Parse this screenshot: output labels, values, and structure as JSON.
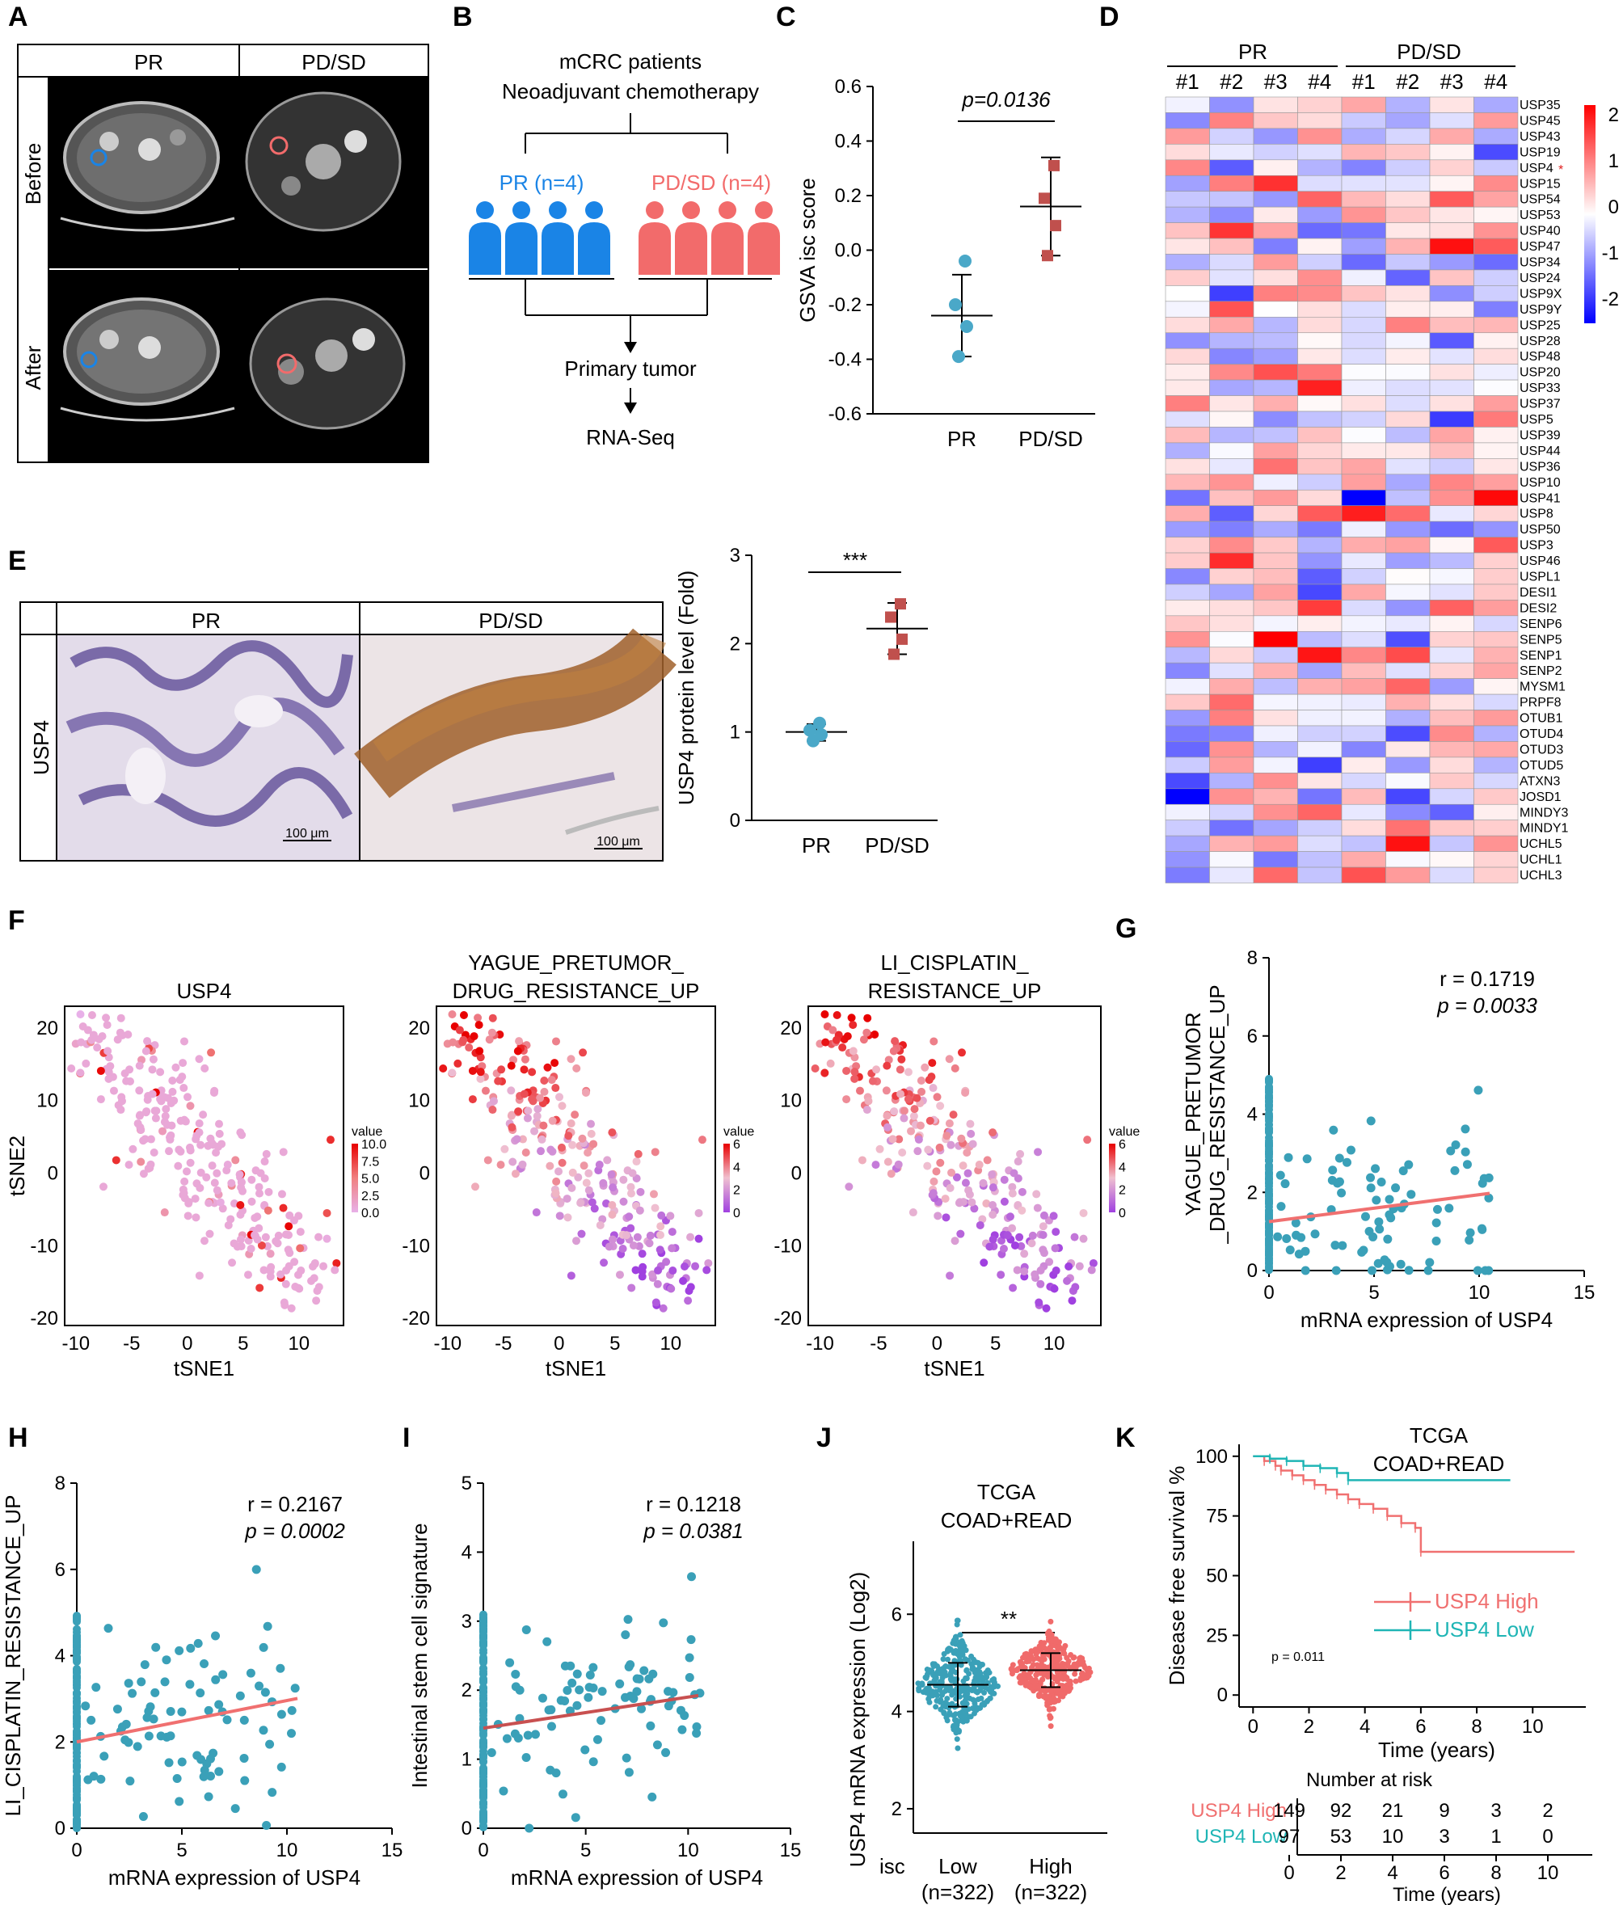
{
  "panel_labels": {
    "A": "A",
    "B": "B",
    "C": "C",
    "D": "D",
    "E": "E",
    "F": "F",
    "G": "G",
    "H": "H",
    "I": "I",
    "J": "J",
    "K": "K"
  },
  "panelA": {
    "col1": "PR",
    "col2": "PD/SD",
    "row1": "Before",
    "row2": "After"
  },
  "panelB": {
    "title1": "mCRC patients",
    "title2": "Neoadjuvant chemotherapy",
    "pr": "PR (n=4)",
    "pdsd": "PD/SD (n=4)",
    "step1": "Primary tumor",
    "step2": "RNA-Seq",
    "pr_color": "#1a84e6",
    "pdsd_color": "#f26b6b"
  },
  "panelE_image": {
    "col1": "PR",
    "col2": "PD/SD",
    "row": "USP4",
    "scale1": "100 μm",
    "scale2": "100 μm"
  },
  "chart_data": [
    {
      "id": "C",
      "type": "scatter",
      "ylabel": "GSVA isc score",
      "categories": [
        "PR",
        "PD/SD"
      ],
      "annotation": "p=0.0136",
      "ylim": [
        -0.6,
        0.6
      ],
      "yticks": [
        "-0.6",
        "-0.4",
        "-0.2",
        "0.0",
        "0.2",
        "0.4",
        "0.6"
      ],
      "groups": [
        {
          "name": "PR",
          "color": "#4aa8c8",
          "points": [
            -0.04,
            -0.2,
            -0.28,
            -0.39
          ],
          "mean": -0.24,
          "sd_low": -0.39,
          "sd_high": -0.09
        },
        {
          "name": "PD/SD",
          "color": "#c0504d",
          "points": [
            0.31,
            0.19,
            0.09,
            -0.02
          ],
          "mean": 0.16,
          "sd_low": -0.02,
          "sd_high": 0.34
        }
      ]
    },
    {
      "id": "D",
      "type": "heatmap",
      "group_labels": [
        "PR",
        "PD/SD"
      ],
      "columns": [
        "#1",
        "#2",
        "#3",
        "#4",
        "#1",
        "#2",
        "#3",
        "#4"
      ],
      "rows": [
        "USP35",
        "USP45",
        "USP43",
        "USP19",
        "USP4",
        "USP15",
        "USP54",
        "USP53",
        "USP40",
        "USP47",
        "USP34",
        "USP24",
        "USP9X",
        "USP9Y",
        "USP25",
        "USP28",
        "USP48",
        "USP20",
        "USP33",
        "USP37",
        "USP5",
        "USP39",
        "USP44",
        "USP36",
        "USP10",
        "USP41",
        "USP8",
        "USP50",
        "USP3",
        "USP46",
        "USPL1",
        "DESI1",
        "DESI2",
        "SENP6",
        "SENP5",
        "SENP1",
        "SENP2",
        "MYSM1",
        "PRPF8",
        "OTUB1",
        "OTUD4",
        "OTUD3",
        "OTUD5",
        "ATXN3",
        "JOSD1",
        "MINDY3",
        "MINDY1",
        "UCHL5",
        "UCHL1",
        "UCHL3"
      ],
      "highlight_row": "USP4",
      "highlight_mark": "*",
      "legend_ticks": [
        "2",
        "1",
        "0",
        "-1",
        "-2"
      ],
      "colors": [
        "#0000ff",
        "#ffffff",
        "#ff0000"
      ]
    },
    {
      "id": "E",
      "type": "scatter",
      "ylabel": "USP4 protein level (Fold)",
      "categories": [
        "PR",
        "PD/SD"
      ],
      "annotation": "***",
      "ylim": [
        0,
        3
      ],
      "yticks": [
        "0",
        "1",
        "2",
        "3"
      ],
      "groups": [
        {
          "name": "PR",
          "color": "#4aa8c8",
          "points": [
            1.1,
            1.02,
            0.97,
            0.9
          ],
          "mean": 1.0,
          "sd_low": 0.9,
          "sd_high": 1.09
        },
        {
          "name": "PD/SD",
          "color": "#c0504d",
          "points": [
            2.45,
            2.3,
            2.05,
            1.88
          ],
          "mean": 2.17,
          "sd_low": 1.88,
          "sd_high": 2.46
        }
      ]
    },
    {
      "id": "F",
      "type": "scatter",
      "subplots": [
        {
          "title": [
            "USP4"
          ],
          "legend_title": "value",
          "legend_ticks": [
            "10.0",
            "7.5",
            "5.0",
            "2.5",
            "0.0"
          ],
          "vmax": 10
        },
        {
          "title": [
            "YAGUE_PRETUMOR_",
            "DRUG_RESISTANCE_UP"
          ],
          "legend_title": "value",
          "legend_ticks": [
            "6",
            "4",
            "2",
            "0"
          ],
          "vmax": 6
        },
        {
          "title": [
            "LI_CISPLATIN_",
            "RESISTANCE_UP"
          ],
          "legend_title": "value",
          "legend_ticks": [
            "6",
            "4",
            "2",
            "0"
          ],
          "vmax": 6
        }
      ],
      "xlabel": "tSNE1",
      "ylabel": "tSNE2",
      "xlim": [
        -11,
        14
      ],
      "ylim": [
        -21,
        23
      ],
      "xticks": [
        "-10",
        "-5",
        "0",
        "5",
        "10"
      ],
      "yticks": [
        "20",
        "10",
        "0",
        "-10",
        "-20"
      ]
    },
    {
      "id": "G",
      "type": "scatter",
      "xlabel": "mRNA expression of USP4",
      "ylabel": [
        "YAGUE_PRETUMOR",
        "_DRUG_RESISTANCE_UP"
      ],
      "stats": [
        "r = 0.1719",
        "p = 0.0033"
      ],
      "xlim": [
        0,
        15
      ],
      "ylim": [
        0,
        8
      ],
      "xticks": [
        "0",
        "5",
        "10",
        "15"
      ],
      "yticks": [
        "0",
        "2",
        "4",
        "6",
        "8"
      ],
      "fit": {
        "intercept": 1.25,
        "slope": 0.069,
        "x_end": 10.5
      },
      "point_color": "#3aa0b8",
      "line_color": "#f07070"
    },
    {
      "id": "H",
      "type": "scatter",
      "xlabel": "mRNA expression of USP4",
      "ylabel": [
        "LI_CISPLATIN_RESISTANCE_UP"
      ],
      "stats": [
        "r = 0.2167",
        "p = 0.0002"
      ],
      "xlim": [
        0,
        15
      ],
      "ylim": [
        0,
        8
      ],
      "xticks": [
        "0",
        "5",
        "10",
        "15"
      ],
      "yticks": [
        "0",
        "2",
        "4",
        "6",
        "8"
      ],
      "fit": {
        "intercept": 2.0,
        "slope": 0.096,
        "x_end": 10.5
      },
      "point_color": "#3aa0b8",
      "line_color": "#f07070"
    },
    {
      "id": "I",
      "type": "scatter",
      "xlabel": "mRNA expression of USP4",
      "ylabel": [
        "Intestinal stem cell signature"
      ],
      "stats": [
        "r = 0.1218",
        "p = 0.0381"
      ],
      "xlim": [
        0,
        15
      ],
      "ylim": [
        0,
        5
      ],
      "xticks": [
        "0",
        "5",
        "10",
        "15"
      ],
      "yticks": [
        "0",
        "1",
        "2",
        "3",
        "4",
        "5"
      ],
      "fit": {
        "intercept": 1.45,
        "slope": 0.045,
        "x_end": 10.5
      },
      "point_color": "#3aa0b8",
      "line_color": "#c85050"
    },
    {
      "id": "J",
      "type": "scatter",
      "title": [
        "TCGA",
        "COAD+READ"
      ],
      "ylabel": "USP4 mRNA expression (Log2)",
      "annotation": "**",
      "row_label": "isc",
      "categories": [
        "Low",
        "High"
      ],
      "category_n": [
        "(n=322)",
        "(n=322)"
      ],
      "ylim": [
        1.5,
        7.5
      ],
      "yticks": [
        "2",
        "4",
        "6"
      ],
      "groups": [
        {
          "name": "Low",
          "color": "#3aa0b8",
          "mean": 4.55,
          "sd": 0.45,
          "min": 2.6,
          "max": 5.9
        },
        {
          "name": "High",
          "color": "#f06a6a",
          "mean": 4.85,
          "sd": 0.35,
          "min": 3.7,
          "max": 5.95
        }
      ]
    },
    {
      "id": "K",
      "type": "line",
      "title": [
        "TCGA",
        "COAD+READ"
      ],
      "xlabel": "Time (years)",
      "ylabel": "Disease free survival %",
      "pvalue": "p = 0.011",
      "xlim": [
        -0.5,
        11.9
      ],
      "ylim": [
        -5,
        105
      ],
      "xticks": [
        "0",
        "2",
        "4",
        "6",
        "8",
        "10"
      ],
      "yticks": [
        "0",
        "25",
        "50",
        "75",
        "100"
      ],
      "series": [
        {
          "name": "USP4 High",
          "color": "#f07070",
          "x": [
            0,
            0.4,
            0.8,
            1.0,
            1.4,
            1.8,
            2.2,
            2.6,
            3.0,
            3.4,
            3.8,
            4.3,
            4.8,
            5.3,
            5.8,
            6.0,
            11.5
          ],
          "y": [
            100,
            98,
            96,
            94,
            92,
            90,
            88,
            86,
            84,
            82,
            80,
            78,
            75,
            72,
            70,
            60,
            60
          ]
        },
        {
          "name": "USP4 Low",
          "color": "#1fb5b5",
          "x": [
            0,
            0.6,
            1.2,
            1.8,
            2.4,
            3.0,
            3.4,
            9.2
          ],
          "y": [
            100,
            99,
            98,
            96,
            95,
            93,
            90,
            90
          ]
        }
      ],
      "risk_table": {
        "title": "Number at risk",
        "rows": [
          {
            "name": "USP4 High",
            "color": "#f07070",
            "values": [
              "149",
              "92",
              "21",
              "9",
              "3",
              "2"
            ]
          },
          {
            "name": "USP4 Low",
            "color": "#1fb5b5",
            "values": [
              "97",
              "53",
              "10",
              "3",
              "1",
              "0"
            ]
          }
        ],
        "xticks": [
          "0",
          "2",
          "4",
          "6",
          "8",
          "10"
        ],
        "xlabel": "Time (years)"
      }
    }
  ]
}
